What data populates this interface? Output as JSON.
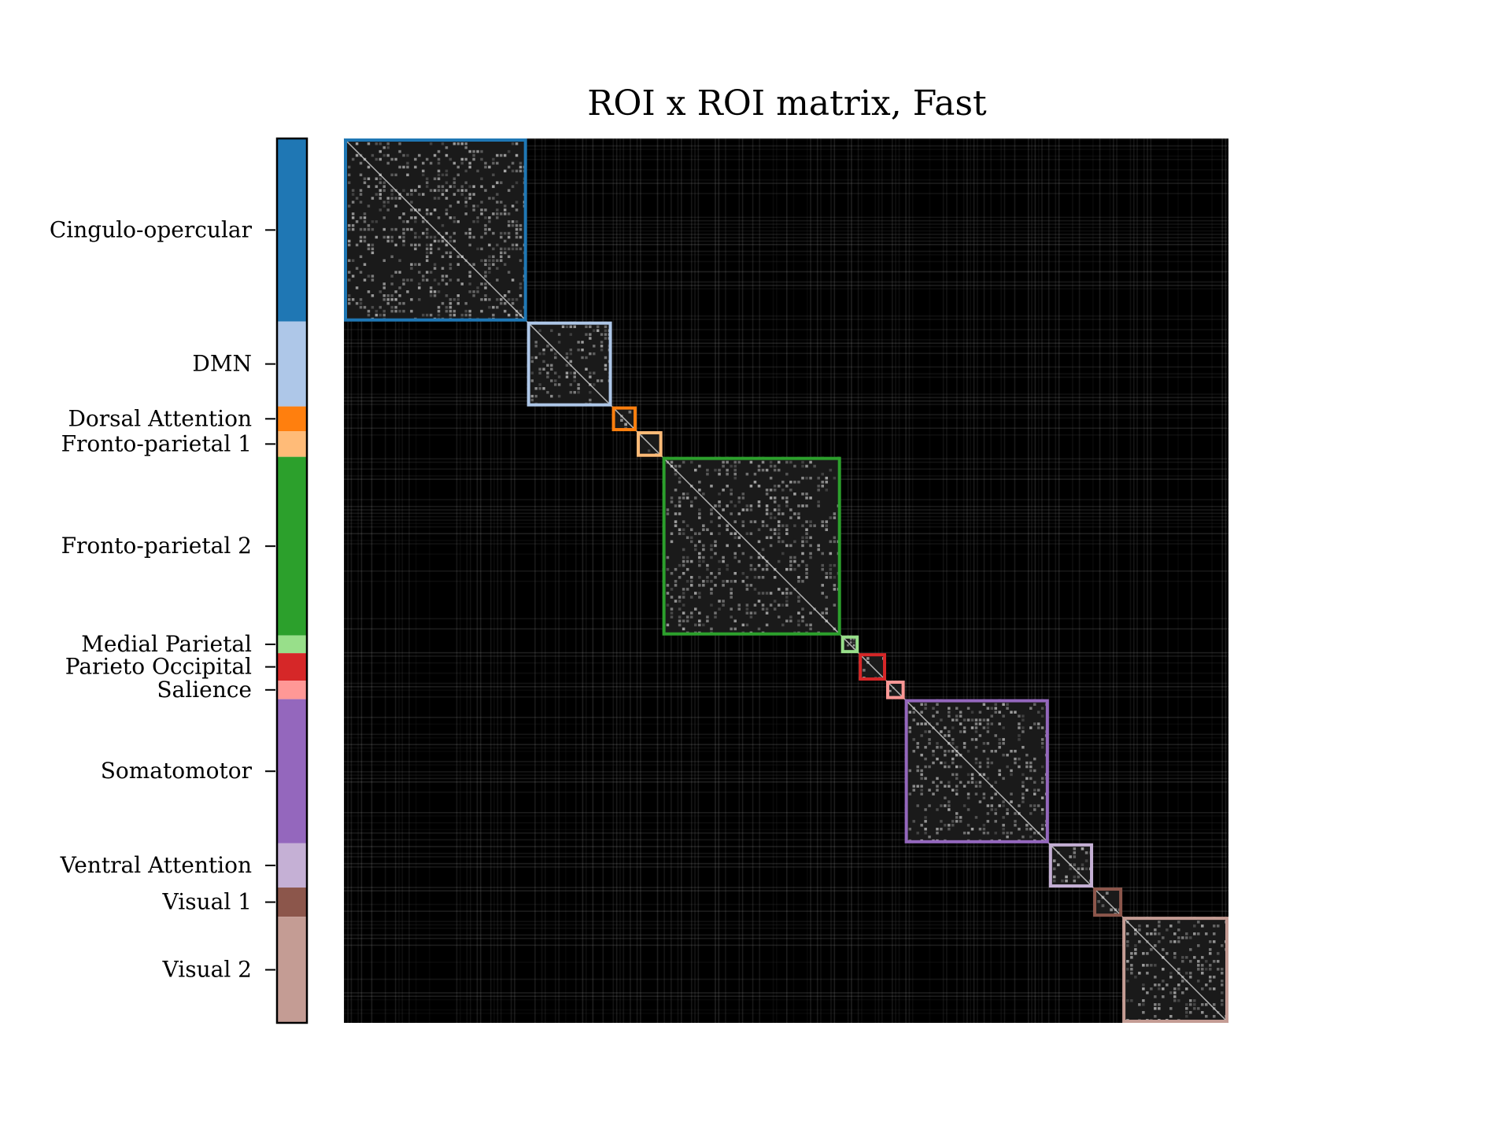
{
  "chart_data": {
    "type": "heatmap",
    "title": "ROI x ROI matrix, Fast",
    "xlabel": "",
    "ylabel": "",
    "colormap": "gray",
    "background": "#000000",
    "grid": false,
    "networks": [
      {
        "name": "Cingulo-opercular",
        "start": 0.0,
        "end": 0.207,
        "color": "#1f77b4"
      },
      {
        "name": "DMN",
        "start": 0.207,
        "end": 0.303,
        "color": "#aec7e8"
      },
      {
        "name": "Dorsal Attention",
        "start": 0.303,
        "end": 0.331,
        "color": "#ff7f0e"
      },
      {
        "name": "Fronto-parietal 1",
        "start": 0.331,
        "end": 0.36,
        "color": "#ffbb78"
      },
      {
        "name": "Fronto-parietal 2",
        "start": 0.36,
        "end": 0.562,
        "color": "#2ca02c"
      },
      {
        "name": "Medial Parietal",
        "start": 0.562,
        "end": 0.582,
        "color": "#98df8a"
      },
      {
        "name": "Parieto Occipital",
        "start": 0.582,
        "end": 0.613,
        "color": "#d62728"
      },
      {
        "name": "Salience",
        "start": 0.613,
        "end": 0.634,
        "color": "#ff9896"
      },
      {
        "name": "Somatomotor",
        "start": 0.634,
        "end": 0.797,
        "color": "#9467bd"
      },
      {
        "name": "Ventral Attention",
        "start": 0.797,
        "end": 0.847,
        "color": "#c5b0d5"
      },
      {
        "name": "Visual 1",
        "start": 0.847,
        "end": 0.88,
        "color": "#8c564b"
      },
      {
        "name": "Visual 2",
        "start": 0.88,
        "end": 1.0,
        "color": "#c49c94"
      }
    ]
  }
}
